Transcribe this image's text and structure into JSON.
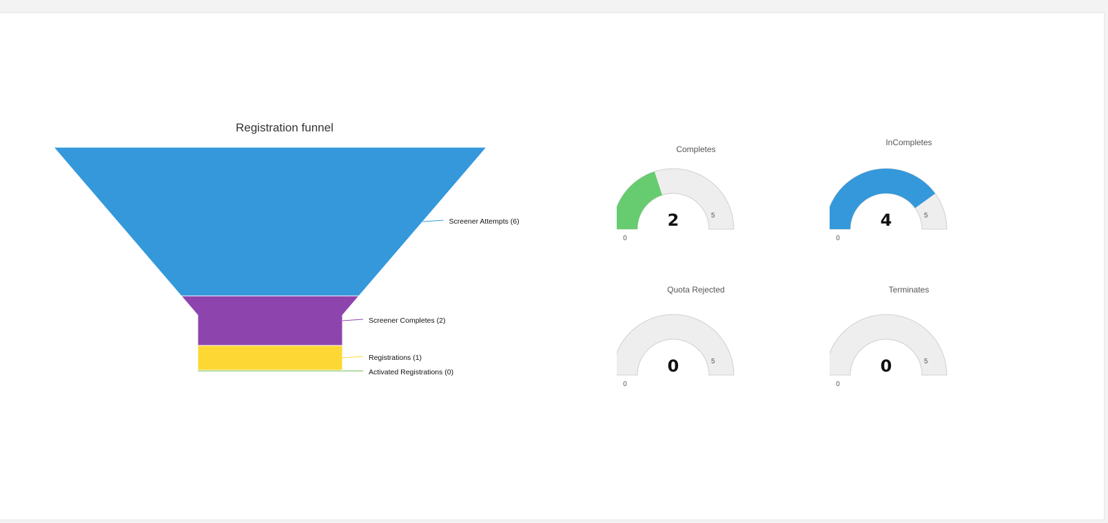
{
  "funnel": {
    "title": "Registration funnel"
  },
  "chart_data": [
    {
      "type": "funnel",
      "title": "Registration funnel",
      "stages": [
        {
          "label": "Screener Attempts (6)",
          "name": "Screener Attempts",
          "value": 6,
          "color": "#3498db"
        },
        {
          "label": "Screener Completes (2)",
          "name": "Screener Completes",
          "value": 2,
          "color": "#8e44ad"
        },
        {
          "label": "Registrations (1)",
          "name": "Registrations",
          "value": 1,
          "color": "#fdd835"
        },
        {
          "label": "Activated Registrations (0)",
          "name": "Activated Registrations",
          "value": 0,
          "color": "#66bb44"
        }
      ]
    },
    {
      "type": "gauge",
      "title": "Completes",
      "value": 2,
      "min": 0,
      "max": 5,
      "color": "#66cc6f",
      "track_color": "#eeeeee"
    },
    {
      "type": "gauge",
      "title": "InCompletes",
      "value": 4,
      "min": 0,
      "max": 5,
      "color": "#3498db",
      "track_color": "#eeeeee"
    },
    {
      "type": "gauge",
      "title": "Quota Rejected",
      "value": 0,
      "min": 0,
      "max": 5,
      "color": "#3498db",
      "track_color": "#eeeeee"
    },
    {
      "type": "gauge",
      "title": "Terminates",
      "value": 0,
      "min": 0,
      "max": 5,
      "color": "#3498db",
      "track_color": "#eeeeee"
    }
  ]
}
